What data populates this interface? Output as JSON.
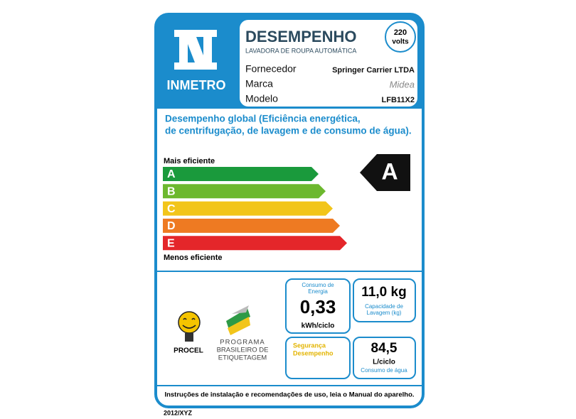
{
  "header": {
    "logo": "INMETRO",
    "title": "DESEMPENHO",
    "subtitle": "LAVADORA DE ROUPA AUTOMÁTICA",
    "voltage_value": "220",
    "voltage_unit": "volts"
  },
  "info": {
    "rows": [
      [
        "Fornecedor",
        "Springer Carrier LTDA"
      ],
      [
        "Marca",
        "Midea"
      ],
      [
        "Modelo",
        "LFB11X2"
      ]
    ]
  },
  "description": [
    "Desempenho global (Eficiência energética,",
    "de centrifugação, de lavagem e de consumo de água)."
  ],
  "scale": {
    "top_label": "Mais eficiente",
    "bottom_label": "Menos eficiente",
    "classes": [
      "A",
      "B",
      "C",
      "D",
      "E"
    ],
    "colors": [
      "#1a9a3c",
      "#6cb82e",
      "#f2c51a",
      "#ee7a22",
      "#e4262a"
    ],
    "rating": "A"
  },
  "boxes": {
    "energy": {
      "label": [
        "Consumo de",
        "Energia"
      ],
      "value": "0,33",
      "unit": "kWh/ciclo"
    },
    "capacity": {
      "value": "11,0 kg",
      "label": [
        "Capacidade de",
        "Lavagem (kg)"
      ]
    },
    "safety": {
      "label": [
        "Segurança",
        "Desempenho"
      ]
    },
    "water": {
      "value": "84,5",
      "unit": "L/ciclo",
      "label": "Consumo de água"
    }
  },
  "logos": {
    "procel": "PROCEL",
    "programa": [
      "PROGRAMA",
      "BRASILEIRO DE",
      "ETIQUETAGEM"
    ]
  },
  "footer": {
    "note": "Instruções de instalação e recomendações de uso, leia o Manual do aparelho.",
    "code": "2012/XYZ"
  }
}
